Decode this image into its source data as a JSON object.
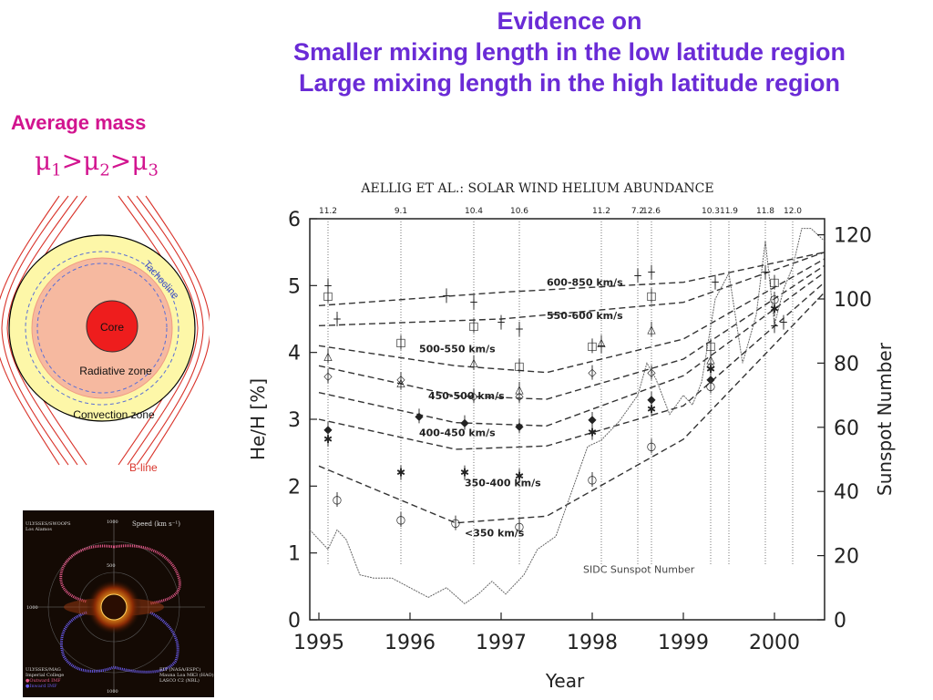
{
  "title_lines": [
    "Evidence on",
    "Smaller mixing length in the low latitude region",
    "Large mixing length in the high latitude region"
  ],
  "left_panel": {
    "avg_label": "Average mass",
    "mu_symbol": "μ",
    "mu_subs": [
      "1",
      "2",
      "3"
    ],
    "mu_sep": ">",
    "diagram": {
      "core": "Core",
      "radiative": "Radiative zone",
      "convection": "Convection zone",
      "tachocline": "Tachocline",
      "bline": "B-line",
      "colors": {
        "outer": "#fdf7a8",
        "radiative": "#f6b9a0",
        "core": "#ee1d1d",
        "lines": "#d9342b",
        "dash": "#5a6fd6"
      }
    }
  },
  "thumbnail": {
    "header_left": "ULYSSES/SWOOPS",
    "header_left2": "Los Alamos",
    "speed_label": "Speed (km s⁻¹)",
    "tick_top": "1000",
    "tick_mid": "500",
    "tick_bot": "1000",
    "left_tick": "1000",
    "footer_left": [
      "ULYSSES/MAG",
      "Imperial College",
      "●Outward IMF",
      "●Inward IMF"
    ],
    "footer_right": [
      "EIT (NASA/ESPC)",
      "Mauna Loa MK3 (HAO)",
      "LASCO C2 (NRL)"
    ]
  },
  "chart_data": {
    "type": "scatter",
    "title": "AELLIG ET AL.: SOLAR WIND HELIUM ABUNDANCE",
    "xlabel": "Year",
    "ylabel": "He/H [%]",
    "y2label": "Sunspot Number",
    "xlim": [
      1994.9,
      2000.55
    ],
    "ylim": [
      0,
      6
    ],
    "y2lim": [
      0,
      125
    ],
    "xticks": [
      1995,
      1996,
      1997,
      1998,
      1999,
      2000
    ],
    "yticks": [
      0,
      1,
      2,
      3,
      4,
      5,
      6
    ],
    "y2ticks": [
      0,
      20,
      40,
      60,
      80,
      100,
      120
    ],
    "top_labels": [
      {
        "x": 1995.1,
        "text": "11.2"
      },
      {
        "x": 1995.9,
        "text": "9.1"
      },
      {
        "x": 1996.7,
        "text": "10.4"
      },
      {
        "x": 1997.2,
        "text": "10.6"
      },
      {
        "x": 1998.1,
        "text": "11.2"
      },
      {
        "x": 1998.5,
        "text": "7.2"
      },
      {
        "x": 1998.65,
        "text": "12.6"
      },
      {
        "x": 1999.3,
        "text": "10.3"
      },
      {
        "x": 1999.5,
        "text": "11.9"
      },
      {
        "x": 1999.9,
        "text": "11.8"
      },
      {
        "x": 2000.2,
        "text": "12.0"
      }
    ],
    "series": [
      {
        "name": "600-850 km/s",
        "marker": "+",
        "fit": [
          [
            1995.0,
            4.7
          ],
          [
            1997.0,
            4.9
          ],
          [
            1999.0,
            5.05
          ],
          [
            2000.55,
            5.5
          ]
        ],
        "label_xy": [
          1997.5,
          5.0
        ],
        "points": [
          [
            1995.1,
            5.0
          ],
          [
            1995.2,
            4.5
          ],
          [
            1996.4,
            4.85
          ],
          [
            1996.7,
            4.75
          ],
          [
            1997.0,
            4.45
          ],
          [
            1997.2,
            4.35
          ],
          [
            1998.1,
            4.1
          ],
          [
            1998.5,
            5.15
          ],
          [
            1998.65,
            5.2
          ],
          [
            1999.35,
            5.05
          ],
          [
            1999.9,
            5.2
          ],
          [
            2000.0,
            4.4
          ],
          [
            2000.1,
            4.45
          ]
        ]
      },
      {
        "name": "550-600 km/s",
        "marker": "□",
        "fit": [
          [
            1995.0,
            4.4
          ],
          [
            1997.0,
            4.5
          ],
          [
            1999.0,
            4.75
          ],
          [
            2000.55,
            5.5
          ]
        ],
        "label_xy": [
          1997.5,
          4.5
        ],
        "points": [
          [
            1995.1,
            4.85
          ],
          [
            1995.9,
            4.15
          ],
          [
            1996.7,
            4.4
          ],
          [
            1997.2,
            3.8
          ],
          [
            1998.0,
            4.1
          ],
          [
            1998.65,
            4.85
          ],
          [
            1999.3,
            4.1
          ],
          [
            2000.0,
            5.05
          ]
        ]
      },
      {
        "name": "500-550 km/s",
        "marker": "△",
        "fit": [
          [
            1995.0,
            4.1
          ],
          [
            1996.5,
            3.8
          ],
          [
            1997.5,
            3.7
          ],
          [
            1999.0,
            4.2
          ],
          [
            2000.55,
            5.4
          ]
        ],
        "label_xy": [
          1996.1,
          4.0
        ],
        "points": [
          [
            1995.1,
            3.95
          ],
          [
            1995.9,
            3.55
          ],
          [
            1996.7,
            3.85
          ],
          [
            1997.2,
            3.45
          ],
          [
            1998.1,
            4.15
          ],
          [
            1998.65,
            4.35
          ],
          [
            1999.3,
            3.9
          ]
        ]
      },
      {
        "name": "450-500 km/s",
        "marker": "◇",
        "fit": [
          [
            1995.0,
            3.8
          ],
          [
            1996.5,
            3.35
          ],
          [
            1997.5,
            3.3
          ],
          [
            1999.0,
            3.9
          ],
          [
            2000.55,
            5.3
          ]
        ],
        "label_xy": [
          1996.2,
          3.3
        ],
        "points": [
          [
            1995.1,
            3.65
          ],
          [
            1995.9,
            3.6
          ],
          [
            1996.7,
            3.35
          ],
          [
            1997.2,
            3.35
          ],
          [
            1998.0,
            3.7
          ],
          [
            1998.65,
            3.7
          ],
          [
            1999.3,
            3.8
          ]
        ]
      },
      {
        "name": "400-450 km/s",
        "marker": "◆",
        "fit": [
          [
            1995.0,
            3.4
          ],
          [
            1996.5,
            2.95
          ],
          [
            1997.5,
            2.9
          ],
          [
            1999.0,
            3.65
          ],
          [
            2000.55,
            5.2
          ]
        ],
        "label_xy": [
          1996.1,
          2.75
        ],
        "points": [
          [
            1995.1,
            2.85
          ],
          [
            1996.1,
            3.05
          ],
          [
            1996.6,
            2.95
          ],
          [
            1997.2,
            2.9
          ],
          [
            1998.0,
            3.0
          ],
          [
            1998.65,
            3.3
          ],
          [
            1999.3,
            3.6
          ]
        ]
      },
      {
        "name": "350-400 km/s",
        "marker": "✱",
        "fit": [
          [
            1995.0,
            3.0
          ],
          [
            1996.5,
            2.55
          ],
          [
            1997.5,
            2.6
          ],
          [
            1999.0,
            3.2
          ],
          [
            2000.55,
            5.05
          ]
        ],
        "label_xy": [
          1996.6,
          2.0
        ],
        "points": [
          [
            1995.1,
            2.7
          ],
          [
            1995.9,
            2.2
          ],
          [
            1996.6,
            2.2
          ],
          [
            1997.2,
            2.15
          ],
          [
            1998.0,
            2.8
          ],
          [
            1998.65,
            3.15
          ],
          [
            1999.3,
            3.75
          ],
          [
            2000.0,
            4.65
          ]
        ]
      },
      {
        "name": "<350 km/s",
        "marker": "○",
        "fit": [
          [
            1995.0,
            2.3
          ],
          [
            1996.5,
            1.45
          ],
          [
            1997.5,
            1.55
          ],
          [
            1999.0,
            2.7
          ],
          [
            2000.55,
            4.9
          ]
        ],
        "label_xy": [
          1996.6,
          1.25
        ],
        "points": [
          [
            1995.2,
            1.8
          ],
          [
            1995.9,
            1.5
          ],
          [
            1996.5,
            1.45
          ],
          [
            1997.2,
            1.4
          ],
          [
            1998.0,
            2.1
          ],
          [
            1998.65,
            2.6
          ],
          [
            1999.3,
            3.5
          ],
          [
            2000.0,
            4.8
          ]
        ]
      }
    ],
    "sunspot_series": {
      "name": "SIDC Sunspot Number",
      "label_xy": [
        1997.9,
        0.7
      ],
      "x": [
        1994.9,
        1995.0,
        1995.1,
        1995.2,
        1995.3,
        1995.45,
        1995.6,
        1995.8,
        1996.0,
        1996.2,
        1996.4,
        1996.6,
        1996.75,
        1996.9,
        1997.05,
        1997.25,
        1997.4,
        1997.6,
        1997.8,
        1997.95,
        1998.1,
        1998.3,
        1998.5,
        1998.6,
        1998.7,
        1998.85,
        1999.0,
        1999.1,
        1999.2,
        1999.35,
        1999.5,
        1999.65,
        1999.8,
        1999.9,
        2000.0,
        2000.1,
        2000.2,
        2000.3,
        2000.4,
        2000.55
      ],
      "y": [
        28,
        25,
        22,
        28,
        25,
        14,
        13,
        13,
        10,
        7,
        10,
        5,
        8,
        12,
        8,
        14,
        22,
        26,
        42,
        54,
        56,
        62,
        70,
        80,
        75,
        64,
        70,
        67,
        74,
        100,
        108,
        80,
        95,
        118,
        92,
        103,
        110,
        122,
        122,
        118
      ]
    }
  }
}
